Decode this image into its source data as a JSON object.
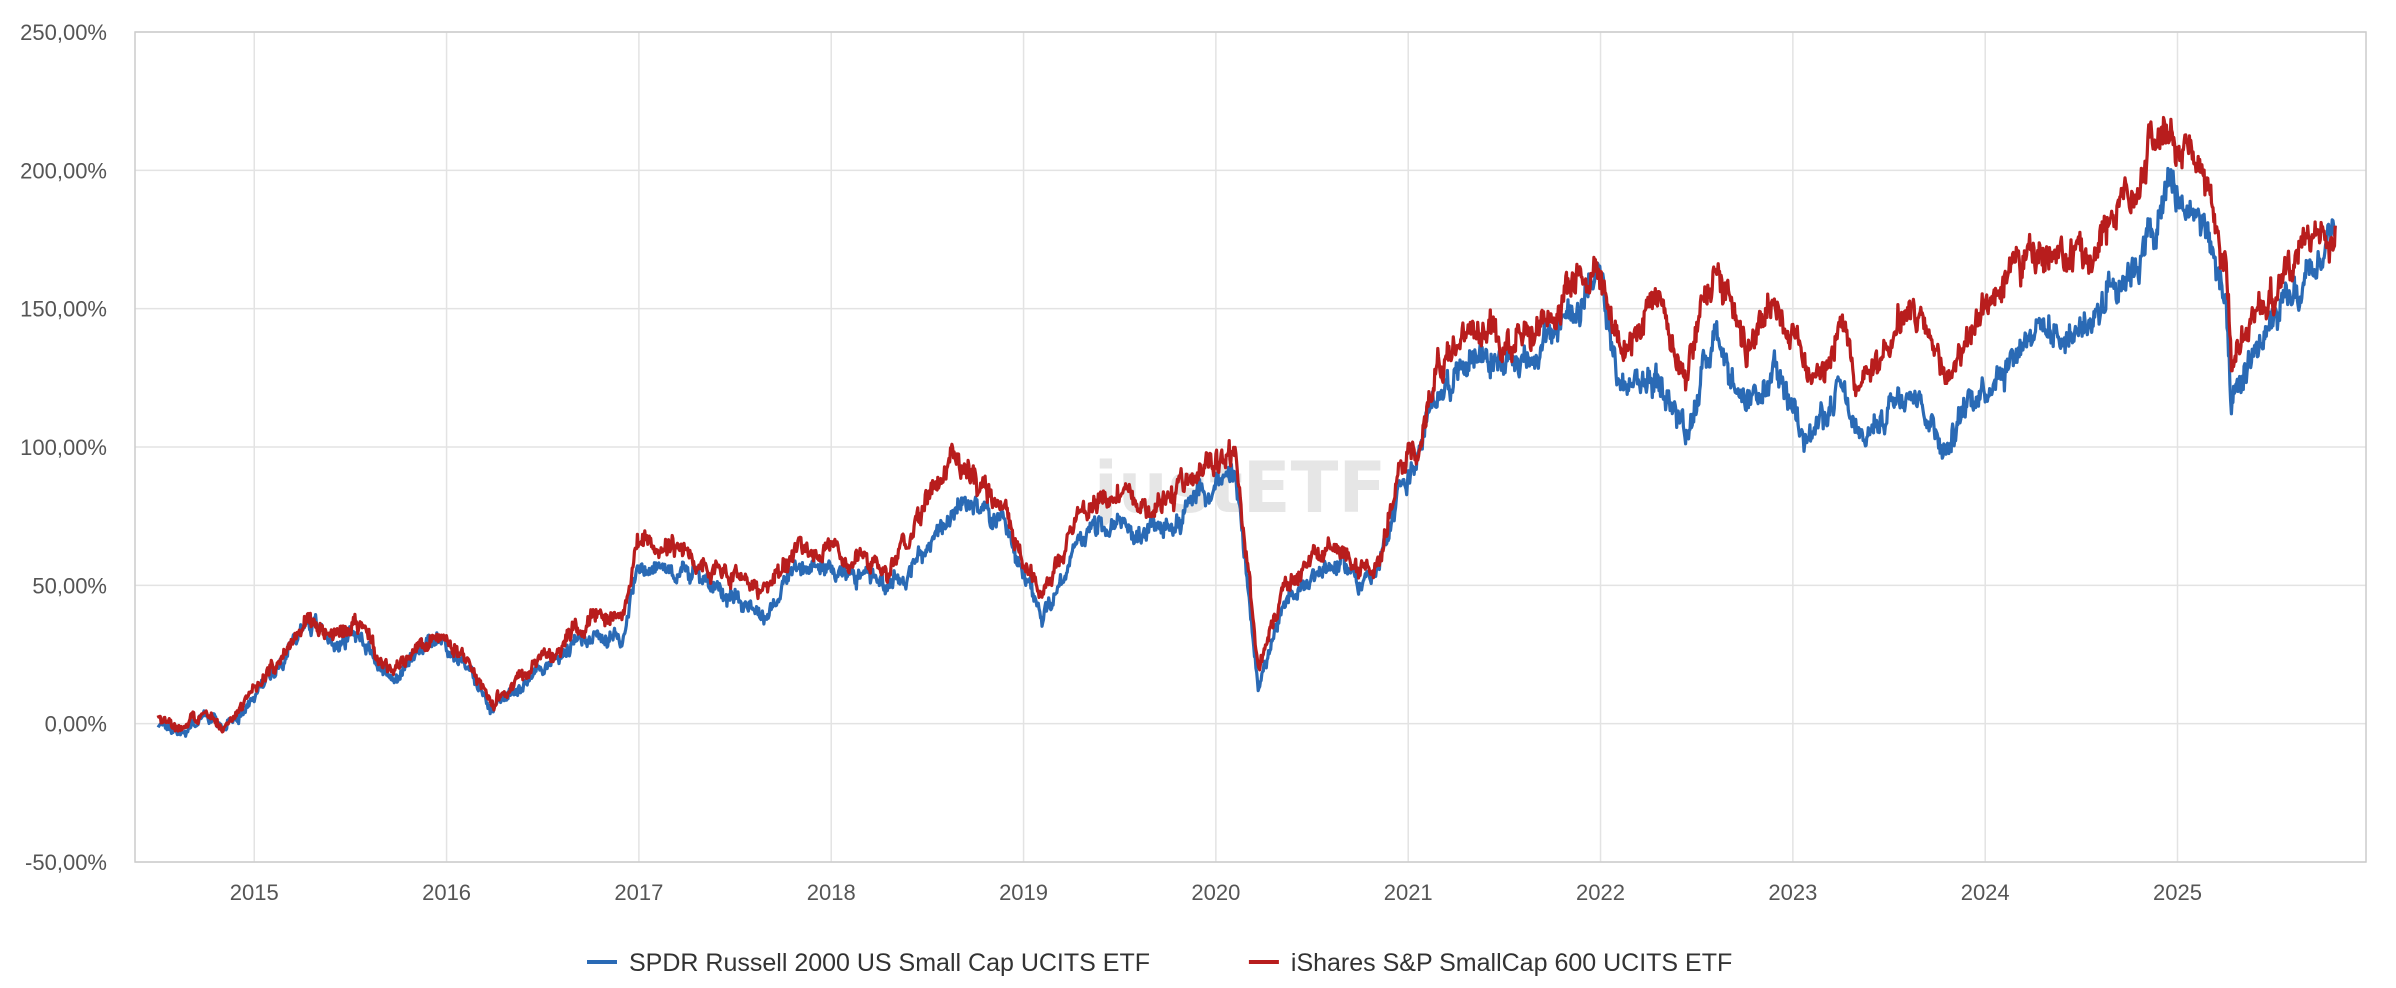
{
  "chart_data": {
    "type": "line",
    "title": "",
    "xlabel": "",
    "ylabel": "",
    "ylim": [
      -50,
      250
    ],
    "y_ticks": [
      -50,
      0,
      50,
      100,
      150,
      200,
      250
    ],
    "y_tick_labels": [
      "-50,00%",
      "0,00%",
      "50,00%",
      "100,00%",
      "150,00%",
      "200,00%",
      "250,00%"
    ],
    "xlim": [
      2014.38,
      2025.98
    ],
    "x_ticks": [
      2015,
      2016,
      2017,
      2018,
      2019,
      2020,
      2021,
      2022,
      2023,
      2024,
      2025
    ],
    "x_tick_labels": [
      "2015",
      "2016",
      "2017",
      "2018",
      "2019",
      "2020",
      "2021",
      "2022",
      "2023",
      "2024",
      "2025"
    ],
    "grid": true,
    "legend_position": "bottom-center",
    "watermark": "justETF",
    "series": [
      {
        "name": "SPDR Russell 2000 US Small Cap UCITS ETF",
        "color": "#2a6ab5",
        "x": [
          2014.5,
          2014.62,
          2014.75,
          2014.83,
          2015.0,
          2015.15,
          2015.28,
          2015.42,
          2015.55,
          2015.65,
          2015.72,
          2015.85,
          2015.98,
          2016.1,
          2016.25,
          2016.45,
          2016.6,
          2016.75,
          2016.85,
          2016.9,
          2017.0,
          2017.2,
          2017.4,
          2017.6,
          2017.65,
          2017.8,
          2018.0,
          2018.15,
          2018.3,
          2018.5,
          2018.62,
          2018.75,
          2018.9,
          2018.98,
          2019.1,
          2019.3,
          2019.5,
          2019.6,
          2019.75,
          2019.9,
          2020.1,
          2020.15,
          2020.22,
          2020.35,
          2020.5,
          2020.65,
          2020.75,
          2020.85,
          2020.95,
          2021.05,
          2021.15,
          2021.35,
          2021.5,
          2021.7,
          2021.85,
          2021.9,
          2022.0,
          2022.1,
          2022.3,
          2022.45,
          2022.6,
          2022.75,
          2022.9,
          2023.0,
          2023.1,
          2023.25,
          2023.35,
          2023.6,
          2023.8,
          2023.95,
          2024.1,
          2024.25,
          2024.4,
          2024.55,
          2024.65,
          2024.75,
          2024.9,
          2024.95,
          2025.05,
          2025.15,
          2025.25,
          2025.28,
          2025.4,
          2025.55,
          2025.7,
          2025.82
        ],
        "values": [
          0,
          -3,
          3,
          -2,
          10,
          25,
          38,
          29,
          33,
          22,
          15,
          25,
          30,
          20,
          5,
          18,
          25,
          33,
          31,
          29,
          58,
          56,
          50,
          43,
          39,
          55,
          57,
          55,
          50,
          62,
          75,
          80,
          70,
          55,
          38,
          68,
          73,
          68,
          70,
          82,
          88,
          60,
          15,
          40,
          55,
          58,
          52,
          55,
          85,
          95,
          120,
          135,
          130,
          135,
          150,
          155,
          158,
          120,
          125,
          105,
          145,
          110,
          125,
          115,
          105,
          120,
          100,
          125,
          100,
          120,
          130,
          145,
          140,
          145,
          160,
          165,
          180,
          195,
          185,
          180,
          150,
          110,
          135,
          148,
          160,
          180
        ]
      },
      {
        "name": "iShares S&P SmallCap 600 UCITS ETF",
        "color": "#b81d1d",
        "x": [
          2014.5,
          2014.62,
          2014.75,
          2014.83,
          2015.0,
          2015.15,
          2015.28,
          2015.42,
          2015.55,
          2015.65,
          2015.72,
          2015.85,
          2015.98,
          2016.1,
          2016.25,
          2016.45,
          2016.6,
          2016.75,
          2016.85,
          2016.9,
          2017.0,
          2017.2,
          2017.4,
          2017.6,
          2017.65,
          2017.8,
          2018.0,
          2018.15,
          2018.3,
          2018.5,
          2018.62,
          2018.75,
          2018.9,
          2018.98,
          2019.1,
          2019.3,
          2019.5,
          2019.6,
          2019.75,
          2019.9,
          2020.1,
          2020.15,
          2020.22,
          2020.35,
          2020.5,
          2020.65,
          2020.75,
          2020.85,
          2020.95,
          2021.05,
          2021.15,
          2021.35,
          2021.5,
          2021.7,
          2021.85,
          2021.9,
          2022.0,
          2022.1,
          2022.3,
          2022.45,
          2022.6,
          2022.75,
          2022.9,
          2023.0,
          2023.1,
          2023.25,
          2023.35,
          2023.6,
          2023.8,
          2023.95,
          2024.1,
          2024.25,
          2024.4,
          2024.55,
          2024.65,
          2024.75,
          2024.9,
          2024.95,
          2025.05,
          2025.15,
          2025.25,
          2025.28,
          2025.4,
          2025.55,
          2025.7,
          2025.82
        ],
        "values": [
          1,
          -2,
          3,
          -1,
          12,
          27,
          37,
          31,
          35,
          24,
          17,
          28,
          33,
          23,
          8,
          21,
          30,
          38,
          37,
          36,
          65,
          63,
          57,
          50,
          46,
          62,
          63,
          62,
          56,
          80,
          95,
          90,
          76,
          62,
          46,
          78,
          82,
          77,
          80,
          90,
          96,
          67,
          22,
          48,
          60,
          62,
          56,
          60,
          90,
          98,
          130,
          145,
          138,
          143,
          160,
          165,
          165,
          135,
          150,
          125,
          170,
          135,
          155,
          140,
          125,
          145,
          120,
          150,
          125,
          145,
          160,
          170,
          165,
          170,
          185,
          190,
          215,
          210,
          205,
          195,
          165,
          130,
          150,
          160,
          172,
          180
        ]
      }
    ]
  }
}
